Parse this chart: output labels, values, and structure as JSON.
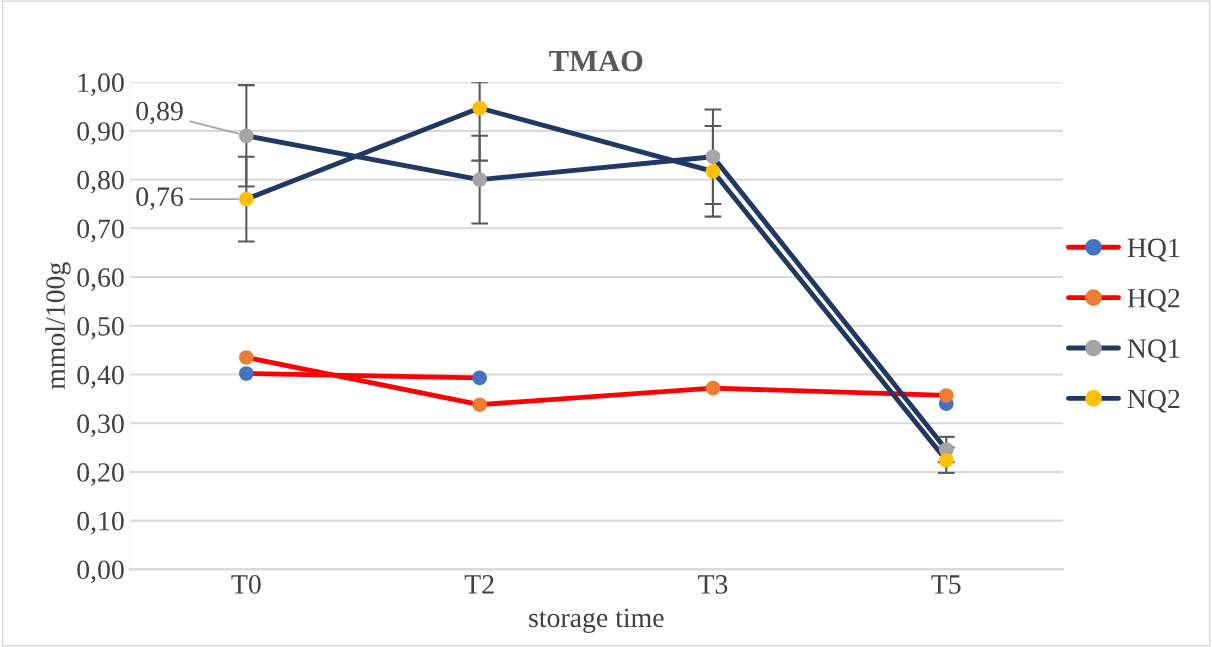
{
  "chart_data": {
    "type": "line",
    "title": "TMAO",
    "xlabel": "storage time",
    "ylabel": "mmol/100g",
    "categories": [
      "T0",
      "T2",
      "T3",
      "T5"
    ],
    "series": [
      {
        "name": "HQ1",
        "color": "#ff0000",
        "colors": [
          "#4472c4",
          "#4472c4",
          "#4472c4",
          "#4472c4"
        ],
        "values": [
          0.402,
          0.393,
          null,
          0.34
        ]
      },
      {
        "name": "HQ2",
        "color": "#ff0000",
        "colors": [
          "#ed7d31",
          "#ed7d31",
          "#ed7d31",
          "#ed7d31"
        ],
        "values": [
          0.435,
          0.338,
          0.372,
          0.357
        ]
      },
      {
        "name": "NQ1",
        "color": "#203864",
        "colors": [
          "#a5a5a5",
          "#a5a5a5",
          "#a5a5a5",
          "#a5a5a5"
        ],
        "values": [
          0.89,
          0.8,
          0.847,
          0.246
        ],
        "errors": [
          0.104,
          0.09,
          0.097,
          0.026
        ],
        "value_labels": [
          "0,89",
          null,
          null,
          null
        ]
      },
      {
        "name": "NQ2",
        "color": "#203864",
        "colors": [
          "#ffc000",
          "#ffc000",
          "#ffc000",
          "#ffc000"
        ],
        "values": [
          0.76,
          0.947,
          0.817,
          0.224
        ],
        "errors": [
          0.087,
          [
            0.839,
            1.0
          ],
          0.093,
          0.026
        ],
        "value_labels": [
          "0,76",
          null,
          null,
          null
        ]
      }
    ],
    "ylim": [
      0,
      1.0
    ],
    "yticks": [
      {
        "value": 0,
        "label": "0,00"
      },
      {
        "value": 0.1,
        "label": "0,10"
      },
      {
        "value": 0.2,
        "label": "0,20"
      },
      {
        "value": 0.3,
        "label": "0,30"
      },
      {
        "value": 0.4,
        "label": "0,40"
      },
      {
        "value": 0.5,
        "label": "0,50"
      },
      {
        "value": 0.6,
        "label": "0,60"
      },
      {
        "value": 0.7,
        "label": "0,70"
      },
      {
        "value": 0.8,
        "label": "0,80"
      },
      {
        "value": 0.9,
        "label": "0,90"
      },
      {
        "value": 1.0,
        "label": "1,00"
      }
    ],
    "grid": "y",
    "legend": "right",
    "marker": "circle",
    "line_style": "solid"
  }
}
